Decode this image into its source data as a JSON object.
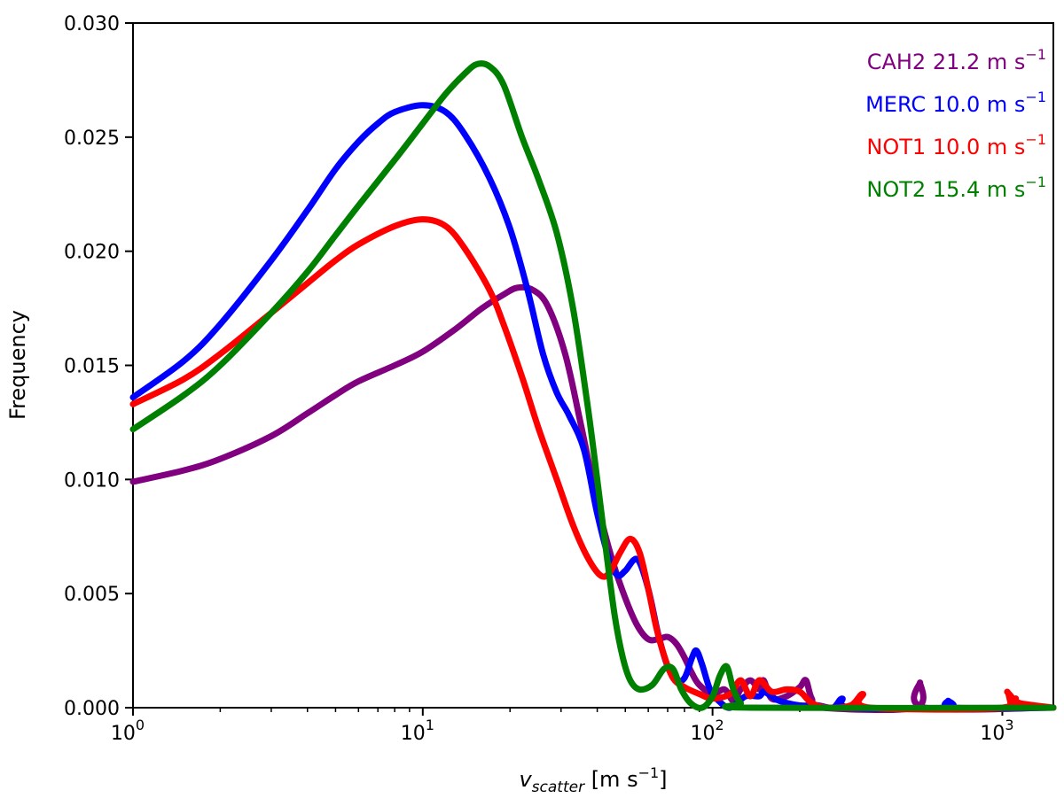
{
  "chart_data": {
    "type": "line",
    "title": "",
    "xlabel": {
      "var": "v",
      "sub": "scatter",
      "unit_open": " [m s",
      "unit_sup": "−1",
      "unit_close": "]"
    },
    "ylabel": "Frequency",
    "xscale": "log",
    "xlim": [
      1,
      1500
    ],
    "ylim": [
      0,
      0.03
    ],
    "grid": false,
    "legend_position": "top-right",
    "x_ticks": [
      {
        "base": "10",
        "exp": "0",
        "value": 1
      },
      {
        "base": "10",
        "exp": "1",
        "value": 10
      },
      {
        "base": "10",
        "exp": "2",
        "value": 100
      },
      {
        "base": "10",
        "exp": "3",
        "value": 1000
      }
    ],
    "y_ticks": [
      {
        "label": "0.000",
        "value": 0
      },
      {
        "label": "0.005",
        "value": 0.005
      },
      {
        "label": "0.010",
        "value": 0.01
      },
      {
        "label": "0.015",
        "value": 0.015
      },
      {
        "label": "0.020",
        "value": 0.02
      },
      {
        "label": "0.025",
        "value": 0.025
      },
      {
        "label": "0.030",
        "value": 0.03
      }
    ],
    "series": [
      {
        "name": "CAH2",
        "legend_main": "CAH2 21.2 m s",
        "legend_sup": "−1",
        "color": "#800080",
        "points": [
          [
            1,
            0.0099
          ],
          [
            1.5,
            0.0104
          ],
          [
            2,
            0.0109
          ],
          [
            3,
            0.0119
          ],
          [
            4,
            0.0129
          ],
          [
            5,
            0.0137
          ],
          [
            6,
            0.0143
          ],
          [
            8,
            0.015
          ],
          [
            10,
            0.0156
          ],
          [
            13,
            0.0166
          ],
          [
            16,
            0.0175
          ],
          [
            19,
            0.0181
          ],
          [
            21.2,
            0.0184
          ],
          [
            24,
            0.0183
          ],
          [
            27,
            0.0176
          ],
          [
            31,
            0.0155
          ],
          [
            35,
            0.0125
          ],
          [
            40,
            0.009
          ],
          [
            45,
            0.0065
          ],
          [
            50,
            0.0048
          ],
          [
            55,
            0.0036
          ],
          [
            60,
            0.003
          ],
          [
            65,
            0.003
          ],
          [
            70,
            0.0031
          ],
          [
            75,
            0.0028
          ],
          [
            80,
            0.0022
          ],
          [
            85,
            0.0015
          ],
          [
            90,
            0.001
          ],
          [
            100,
            0.0006
          ],
          [
            110,
            0.0008
          ],
          [
            118,
            0.0003
          ],
          [
            125,
            0.0008
          ],
          [
            135,
            0.0012
          ],
          [
            145,
            0.0008
          ],
          [
            150,
            0.0012
          ],
          [
            160,
            0.0004
          ],
          [
            180,
            0.0005
          ],
          [
            200,
            0.0009
          ],
          [
            210,
            0.0012
          ],
          [
            220,
            0.0004
          ],
          [
            240,
            0
          ],
          [
            500,
            0
          ],
          [
            520,
            0.0011
          ],
          [
            540,
            0
          ],
          [
            1500,
            0
          ]
        ]
      },
      {
        "name": "MERC",
        "legend_main": "MERC 10.0 m s",
        "legend_sup": "−1",
        "color": "#0000ff",
        "points": [
          [
            1,
            0.0136
          ],
          [
            1.5,
            0.0152
          ],
          [
            2,
            0.0168
          ],
          [
            3,
            0.0196
          ],
          [
            4,
            0.0218
          ],
          [
            5,
            0.0236
          ],
          [
            6,
            0.0248
          ],
          [
            7,
            0.0256
          ],
          [
            8,
            0.0261
          ],
          [
            10,
            0.0264
          ],
          [
            12,
            0.0261
          ],
          [
            14,
            0.0251
          ],
          [
            17,
            0.0232
          ],
          [
            20,
            0.021
          ],
          [
            23,
            0.0183
          ],
          [
            26,
            0.0155
          ],
          [
            29,
            0.0138
          ],
          [
            32,
            0.0128
          ],
          [
            36,
            0.0113
          ],
          [
            40,
            0.0085
          ],
          [
            44,
            0.0065
          ],
          [
            47,
            0.0058
          ],
          [
            50,
            0.006
          ],
          [
            55,
            0.0065
          ],
          [
            60,
            0.0052
          ],
          [
            65,
            0.0032
          ],
          [
            70,
            0.0018
          ],
          [
            75,
            0.0012
          ],
          [
            80,
            0.0013
          ],
          [
            85,
            0.0022
          ],
          [
            88,
            0.0025
          ],
          [
            92,
            0.0019
          ],
          [
            98,
            0.0008
          ],
          [
            105,
            0.0003
          ],
          [
            115,
            0
          ],
          [
            130,
            0.0005
          ],
          [
            145,
            0.0005
          ],
          [
            150,
            0.0007
          ],
          [
            160,
            0.0005
          ],
          [
            170,
            0.0003
          ],
          [
            200,
            0.0001
          ],
          [
            230,
            0.0001
          ],
          [
            260,
            0
          ],
          [
            280,
            0.0004
          ],
          [
            300,
            0
          ],
          [
            640,
            0
          ],
          [
            650,
            0.0003
          ],
          [
            680,
            0
          ],
          [
            1500,
            0
          ]
        ]
      },
      {
        "name": "NOT1",
        "legend_main": "NOT1 10.0 m s",
        "legend_sup": "−1",
        "color": "#ff0000",
        "points": [
          [
            1,
            0.0133
          ],
          [
            1.5,
            0.0144
          ],
          [
            2,
            0.0155
          ],
          [
            3,
            0.0173
          ],
          [
            4,
            0.0186
          ],
          [
            5,
            0.0196
          ],
          [
            6,
            0.0203
          ],
          [
            8,
            0.0211
          ],
          [
            10,
            0.0214
          ],
          [
            12,
            0.0211
          ],
          [
            14,
            0.0201
          ],
          [
            17,
            0.0183
          ],
          [
            19,
            0.0168
          ],
          [
            22,
            0.0145
          ],
          [
            25,
            0.0123
          ],
          [
            29,
            0.01
          ],
          [
            33,
            0.008
          ],
          [
            37,
            0.0066
          ],
          [
            41,
            0.0058
          ],
          [
            44,
            0.0059
          ],
          [
            48,
            0.0068
          ],
          [
            52,
            0.0074
          ],
          [
            56,
            0.0068
          ],
          [
            60,
            0.0052
          ],
          [
            64,
            0.0035
          ],
          [
            68,
            0.0023
          ],
          [
            73,
            0.0013
          ],
          [
            80,
            0.0009
          ],
          [
            90,
            0.0006
          ],
          [
            100,
            0.0004
          ],
          [
            115,
            0.0006
          ],
          [
            125,
            0.0012
          ],
          [
            135,
            0.0005
          ],
          [
            145,
            0.0012
          ],
          [
            160,
            0.0007
          ],
          [
            180,
            0.0008
          ],
          [
            200,
            0.0007
          ],
          [
            220,
            0.0002
          ],
          [
            250,
            0
          ],
          [
            300,
            0.0001
          ],
          [
            330,
            0.0006
          ],
          [
            350,
            0
          ],
          [
            1000,
            0
          ],
          [
            1040,
            0.0007
          ],
          [
            1080,
            0
          ],
          [
            1110,
            0.0004
          ],
          [
            1150,
            0.0002
          ],
          [
            1500,
            0
          ]
        ]
      },
      {
        "name": "NOT2",
        "legend_main": "NOT2 15.4 m s",
        "legend_sup": "−1",
        "color": "#008000",
        "points": [
          [
            1,
            0.0122
          ],
          [
            1.5,
            0.0137
          ],
          [
            2,
            0.015
          ],
          [
            3,
            0.0173
          ],
          [
            4,
            0.0191
          ],
          [
            5,
            0.0207
          ],
          [
            6,
            0.022
          ],
          [
            8,
            0.024
          ],
          [
            10,
            0.0256
          ],
          [
            12,
            0.0269
          ],
          [
            14,
            0.0278
          ],
          [
            15.4,
            0.0282
          ],
          [
            17,
            0.0281
          ],
          [
            19,
            0.0273
          ],
          [
            22,
            0.025
          ],
          [
            25,
            0.0232
          ],
          [
            29,
            0.0208
          ],
          [
            33,
            0.0175
          ],
          [
            37,
            0.0133
          ],
          [
            40,
            0.01
          ],
          [
            43,
            0.0068
          ],
          [
            46,
            0.004
          ],
          [
            49,
            0.0022
          ],
          [
            52,
            0.0012
          ],
          [
            56,
            0.0008
          ],
          [
            62,
            0.001
          ],
          [
            68,
            0.0017
          ],
          [
            73,
            0.0017
          ],
          [
            78,
            0.0008
          ],
          [
            84,
            0.0002
          ],
          [
            92,
            0
          ],
          [
            100,
            0.0005
          ],
          [
            106,
            0.0014
          ],
          [
            112,
            0.0018
          ],
          [
            118,
            0.0008
          ],
          [
            125,
            0.0002
          ],
          [
            135,
            0
          ],
          [
            1500,
            0
          ]
        ]
      }
    ]
  }
}
